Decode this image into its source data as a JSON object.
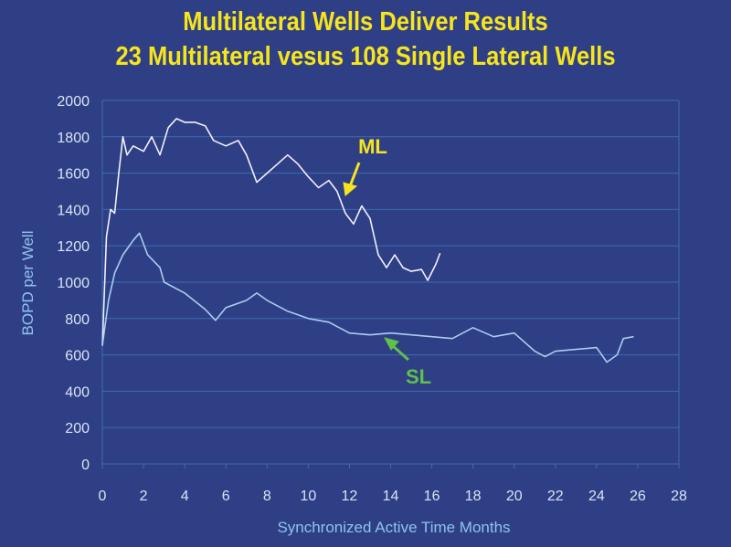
{
  "chart_data": {
    "type": "line",
    "title": "Multilateral Wells Deliver Results",
    "subtitle": "23 Multilateral vesus 108 Single Lateral Wells",
    "xlabel": "Synchronized Active Time Months",
    "ylabel": "BOPD per Well",
    "xlim": [
      0,
      28
    ],
    "ylim": [
      0,
      2000
    ],
    "xticks": [
      "0",
      "2",
      "4",
      "6",
      "8",
      "10",
      "12",
      "14",
      "16",
      "18",
      "20",
      "22",
      "24",
      "26",
      "28"
    ],
    "yticks": [
      "0",
      "200",
      "400",
      "600",
      "800",
      "1000",
      "1200",
      "1400",
      "1600",
      "1800",
      "2000"
    ],
    "grid": true,
    "series": [
      {
        "name": "ML",
        "color": "#f0f0f8",
        "x": [
          0,
          0.2,
          0.4,
          0.6,
          0.8,
          1.0,
          1.2,
          1.5,
          2.0,
          2.4,
          2.8,
          3.2,
          3.6,
          4.0,
          4.5,
          5.0,
          5.4,
          6.0,
          6.6,
          7.0,
          7.5,
          8.0,
          8.5,
          9.0,
          9.5,
          10.0,
          10.5,
          11.0,
          11.4,
          11.8,
          12.2,
          12.6,
          13.0,
          13.4,
          13.8,
          14.2,
          14.6,
          15.0,
          15.5,
          15.8,
          16.2,
          16.4
        ],
        "y": [
          650,
          1250,
          1400,
          1380,
          1600,
          1800,
          1700,
          1750,
          1720,
          1800,
          1700,
          1850,
          1900,
          1880,
          1880,
          1860,
          1780,
          1750,
          1780,
          1700,
          1550,
          1600,
          1650,
          1700,
          1650,
          1580,
          1520,
          1560,
          1500,
          1380,
          1320,
          1420,
          1350,
          1150,
          1080,
          1150,
          1080,
          1060,
          1070,
          1010,
          1100,
          1160
        ]
      },
      {
        "name": "SL",
        "color": "#a9cdf0",
        "x": [
          0,
          0.3,
          0.6,
          1.0,
          1.5,
          1.8,
          2.2,
          2.8,
          3.0,
          4.0,
          5.0,
          5.5,
          6.0,
          7.0,
          7.5,
          8.0,
          9.0,
          10.0,
          11.0,
          12.0,
          13.0,
          14.0,
          15.0,
          16.0,
          17.0,
          18.0,
          19.0,
          20.0,
          21.0,
          21.5,
          22.0,
          23.0,
          24.0,
          24.5,
          25.0,
          25.3,
          25.8
        ],
        "y": [
          650,
          900,
          1050,
          1150,
          1230,
          1270,
          1150,
          1080,
          1000,
          940,
          850,
          790,
          860,
          900,
          940,
          900,
          840,
          800,
          780,
          720,
          710,
          720,
          710,
          700,
          690,
          750,
          700,
          720,
          620,
          590,
          620,
          630,
          640,
          560,
          600,
          690,
          700
        ]
      }
    ],
    "annotations": [
      {
        "text": "ML",
        "color": "#f6e51c"
      },
      {
        "text": "SL",
        "color": "#5fc04a"
      }
    ]
  }
}
